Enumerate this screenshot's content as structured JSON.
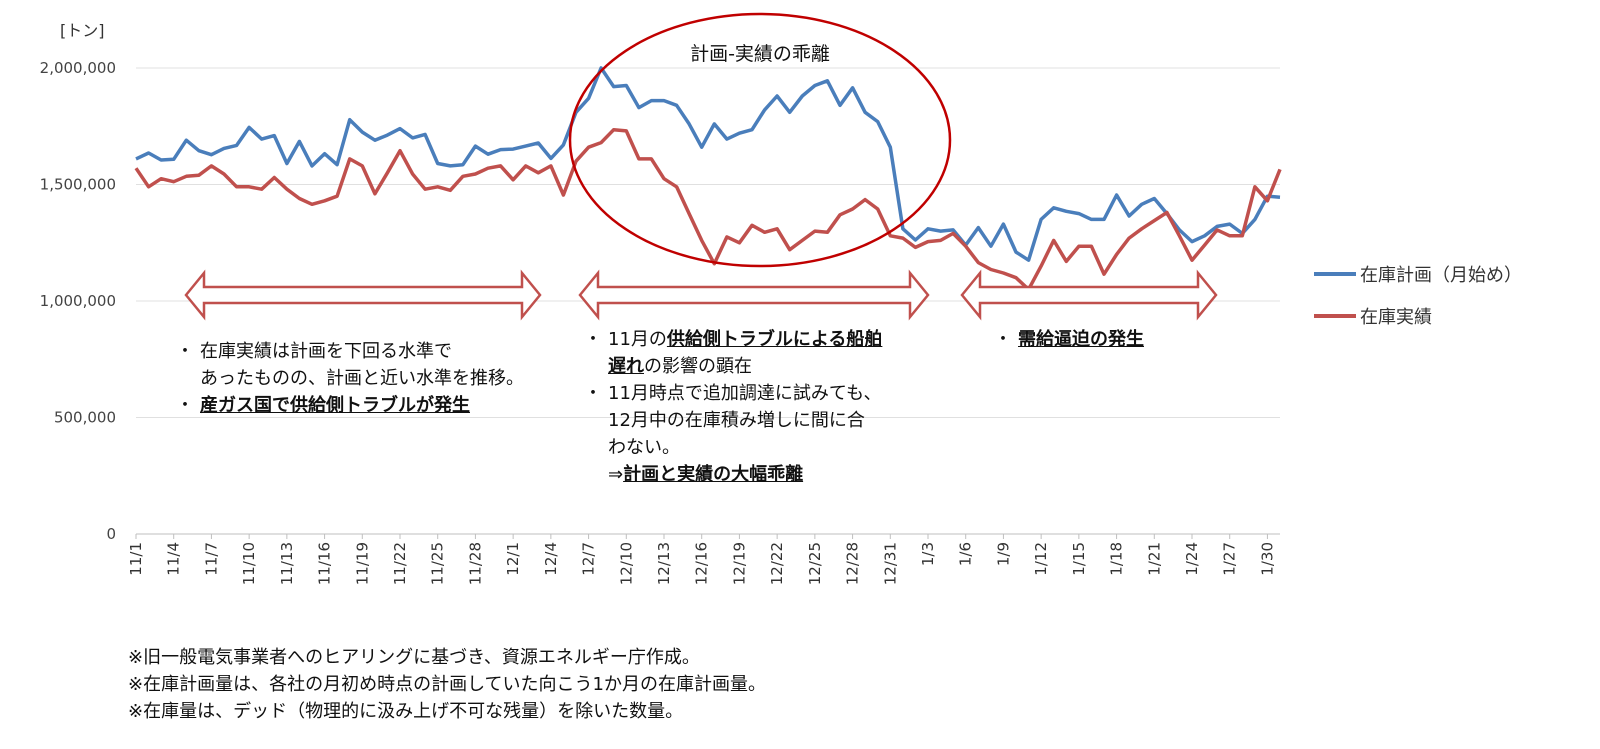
{
  "chart_data": {
    "type": "line",
    "unit_label": "[トン]",
    "ylim": [
      0,
      2000000
    ],
    "yticks": [
      {
        "value": 0,
        "label": "0"
      },
      {
        "value": 500000,
        "label": "500,000"
      },
      {
        "value": 1000000,
        "label": "1,000,000"
      },
      {
        "value": 1500000,
        "label": "1,500,000"
      },
      {
        "value": 2000000,
        "label": "2,000,000"
      }
    ],
    "xtick_labels": [
      "11/1",
      "11/4",
      "11/7",
      "11/10",
      "11/13",
      "11/16",
      "11/19",
      "11/22",
      "11/25",
      "11/28",
      "12/1",
      "12/4",
      "12/7",
      "12/10",
      "12/13",
      "12/16",
      "12/19",
      "12/22",
      "12/25",
      "12/28",
      "12/31",
      "1/3",
      "1/6",
      "1/9",
      "1/12",
      "1/15",
      "1/18",
      "1/21",
      "1/24",
      "1/27",
      "1/30"
    ],
    "grid": true,
    "legend_position": "right",
    "series": [
      {
        "name": "在庫計画（月始め）",
        "color": "#4A7EBB",
        "values": [
          1610000,
          1635000,
          1605000,
          1608000,
          1690000,
          1645000,
          1628000,
          1655000,
          1668000,
          1745000,
          1695000,
          1710000,
          1590000,
          1685000,
          1580000,
          1632000,
          1585000,
          1778000,
          1725000,
          1690000,
          1712000,
          1740000,
          1700000,
          1715000,
          1590000,
          1580000,
          1585000,
          1665000,
          1630000,
          1650000,
          1652000,
          1665000,
          1678000,
          1612000,
          1670000,
          1810000,
          1870000,
          2000000,
          1920000,
          1925000,
          1830000,
          1860000,
          1860000,
          1840000,
          1760000,
          1660000,
          1760000,
          1695000,
          1720000,
          1735000,
          1820000,
          1880000,
          1810000,
          1880000,
          1925000,
          1945000,
          1840000,
          1915000,
          1810000,
          1770000,
          1660000,
          1310000,
          1262000,
          1310000,
          1300000,
          1305000,
          1240000,
          1315000,
          1235000,
          1330000,
          1210000,
          1175000,
          1350000,
          1400000,
          1385000,
          1375000,
          1350000,
          1350000,
          1455000,
          1365000,
          1415000,
          1440000,
          1375000,
          1305000,
          1255000,
          1280000,
          1320000,
          1330000,
          1290000,
          1350000,
          1450000,
          1445000
        ]
      },
      {
        "name": "在庫実績",
        "color": "#C0504D",
        "values": [
          1570000,
          1490000,
          1525000,
          1512000,
          1535000,
          1540000,
          1580000,
          1545000,
          1490000,
          1490000,
          1480000,
          1530000,
          1480000,
          1440000,
          1415000,
          1430000,
          1450000,
          1610000,
          1580000,
          1460000,
          1550000,
          1645000,
          1545000,
          1480000,
          1490000,
          1475000,
          1535000,
          1545000,
          1570000,
          1580000,
          1520000,
          1580000,
          1550000,
          1580000,
          1455000,
          1600000,
          1660000,
          1680000,
          1735000,
          1730000,
          1610000,
          1610000,
          1525000,
          1490000,
          1375000,
          1260000,
          1160000,
          1275000,
          1250000,
          1325000,
          1295000,
          1310000,
          1220000,
          1260000,
          1300000,
          1295000,
          1370000,
          1395000,
          1435000,
          1395000,
          1280000,
          1270000,
          1230000,
          1255000,
          1260000,
          1290000,
          1235000,
          1165000,
          1135000,
          1120000,
          1100000,
          1050000,
          1150000,
          1260000,
          1170000,
          1235000,
          1235000,
          1115000,
          1200000,
          1270000,
          1310000,
          1345000,
          1380000,
          1280000,
          1175000,
          1240000,
          1305000,
          1280000,
          1280000,
          1490000,
          1430000,
          1565000
        ]
      }
    ],
    "circle_label": "計画-実績の乖離",
    "periods": [
      {
        "start": "11/1",
        "end": "12/4"
      },
      {
        "start": "12/5",
        "end": "1/4"
      },
      {
        "start": "1/5",
        "end": "1/31"
      }
    ]
  },
  "notes": {
    "period1": [
      {
        "bullet": "・",
        "lines": [
          {
            "parts": [
              {
                "text": "在庫実績は計画を下回る水準で",
                "em": false
              }
            ]
          },
          {
            "parts": [
              {
                "text": "あったものの、計画と近い水準を推移。",
                "em": false
              }
            ]
          }
        ]
      },
      {
        "bullet": "・",
        "lines": [
          {
            "parts": [
              {
                "text": "産ガス国で供給側トラブルが発生",
                "em": true
              }
            ]
          }
        ]
      }
    ],
    "period2": [
      {
        "bullet": "・",
        "lines": [
          {
            "parts": [
              {
                "text": "11月の",
                "em": false
              },
              {
                "text": "供給側トラブルによる船舶",
                "em": true
              }
            ]
          },
          {
            "parts": [
              {
                "text": "遅れ",
                "em": true
              },
              {
                "text": "の影響の顕在",
                "em": false
              }
            ]
          }
        ]
      },
      {
        "bullet": "・",
        "lines": [
          {
            "parts": [
              {
                "text": "11月時点で追加調達に試みても、",
                "em": false
              }
            ]
          },
          {
            "parts": [
              {
                "text": "12月中の在庫積み増しに間に合",
                "em": false
              }
            ]
          },
          {
            "parts": [
              {
                "text": "わない。",
                "em": false
              }
            ]
          },
          {
            "parts": [
              {
                "text": "⇒",
                "em": false
              },
              {
                "text": "計画と実績の大幅乖離",
                "em": true
              }
            ]
          }
        ]
      }
    ],
    "period3": [
      {
        "bullet": "・",
        "lines": [
          {
            "parts": [
              {
                "text": "需給逼迫の発生",
                "em": true
              }
            ]
          }
        ]
      }
    ]
  },
  "footnotes": [
    "※旧一般電気事業者へのヒアリングに基づき、資源エネルギー庁作成。",
    "※在庫計画量は、各社の月初め時点の計画していた向こう1か月の在庫計画量。",
    "※在庫量は、デッド（物理的に汲み上げ不可な残量）を除いた数量。"
  ]
}
